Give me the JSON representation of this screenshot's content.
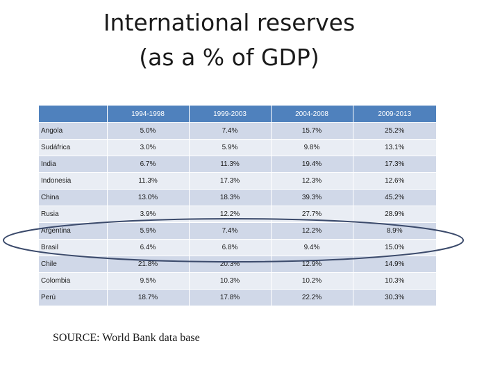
{
  "title": {
    "line1": "International reserves",
    "line2": "(as a % of GDP)"
  },
  "table": {
    "columns": [
      "",
      "1994-1998",
      "1999-2003",
      "2004-2008",
      "2009-2013"
    ],
    "rows": [
      {
        "country": "Angola",
        "values": [
          "5.0%",
          "7.4%",
          "15.7%",
          "25.2%"
        ]
      },
      {
        "country": "Sudáfrica",
        "values": [
          "3.0%",
          "5.9%",
          "9.8%",
          "13.1%"
        ]
      },
      {
        "country": "India",
        "values": [
          "6.7%",
          "11.3%",
          "19.4%",
          "17.3%"
        ]
      },
      {
        "country": "Indonesia",
        "values": [
          "11.3%",
          "17.3%",
          "12.3%",
          "12.6%"
        ]
      },
      {
        "country": "China",
        "values": [
          "13.0%",
          "18.3%",
          "39.3%",
          "45.2%"
        ]
      },
      {
        "country": "Rusia",
        "values": [
          "3.9%",
          "12.2%",
          "27.7%",
          "28.9%"
        ]
      },
      {
        "country": "Argentina",
        "values": [
          "5.9%",
          "7.4%",
          "12.2%",
          "8.9%"
        ]
      },
      {
        "country": "Brasil",
        "values": [
          "6.4%",
          "6.8%",
          "9.4%",
          "15.0%"
        ]
      },
      {
        "country": "Chile",
        "values": [
          "21.8%",
          "20.3%",
          "12.9%",
          "14.9%"
        ]
      },
      {
        "country": "Colombia",
        "values": [
          "9.5%",
          "10.3%",
          "10.2%",
          "10.3%"
        ]
      },
      {
        "country": "Perú",
        "values": [
          "18.7%",
          "17.8%",
          "22.2%",
          "30.3%"
        ]
      }
    ]
  },
  "source": "SOURCE: World Bank data base",
  "colors": {
    "header": "#4f81bd",
    "row_odd": "#d0d8e8",
    "row_even": "#e9edf4",
    "oval": "#3b4a6b"
  }
}
